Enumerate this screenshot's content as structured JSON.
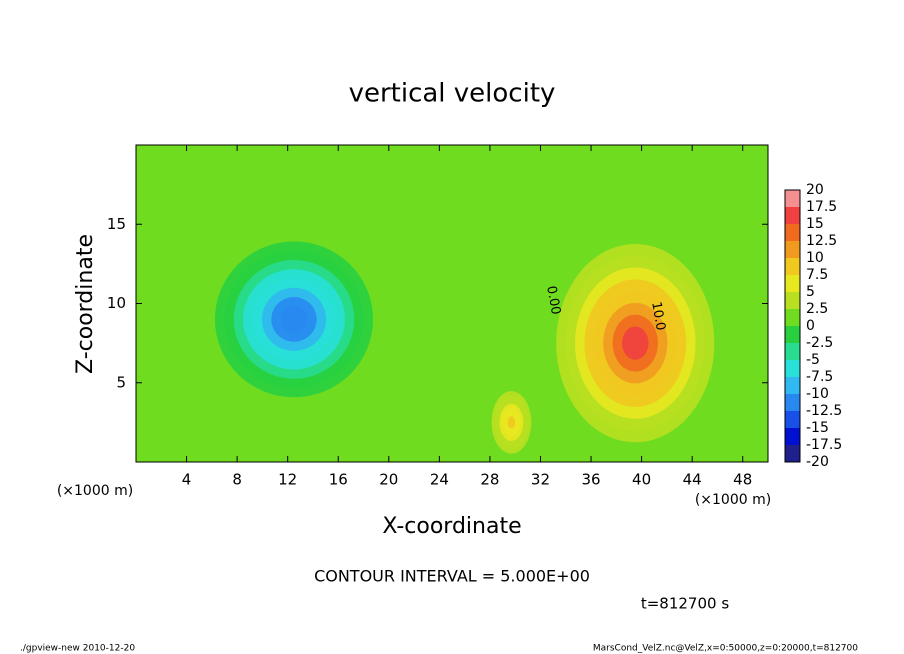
{
  "chart_data": {
    "type": "contour",
    "title": "vertical velocity",
    "x_label": "X-coordinate",
    "y_label": "Z-coordinate",
    "x_unit": "(×1000 m)",
    "y_unit": "(×1000 m)",
    "xlim": [
      0,
      50
    ],
    "ylim": [
      0,
      20
    ],
    "xticks": [
      4,
      8,
      12,
      16,
      20,
      24,
      28,
      32,
      36,
      40,
      44,
      48
    ],
    "yticks": [
      5,
      10,
      15
    ],
    "background_value": 1,
    "features": [
      {
        "x": 12.5,
        "z": 9,
        "rx": 7,
        "rz": 5.5,
        "value": -12.5
      },
      {
        "x": 39.5,
        "z": 7.5,
        "rx": 7,
        "rz": 7,
        "value": 15
      },
      {
        "x": 29.7,
        "z": 2.5,
        "rx": 2,
        "rz": 2.5,
        "value": 7.5
      }
    ],
    "contour_labels": [
      {
        "text": "0.00",
        "x": 33,
        "z": 10.2
      },
      {
        "text": "10.0",
        "x": 41.3,
        "z": 9.2
      }
    ],
    "colorbar": {
      "ticks": [
        20,
        17.5,
        15,
        12.5,
        10,
        7.5,
        5,
        2.5,
        0,
        -2.5,
        -5,
        -7.5,
        -10,
        -12.5,
        -15,
        -17.5,
        -20
      ],
      "colors": [
        "#f49090",
        "#f04040",
        "#f06a20",
        "#f09a20",
        "#f0c820",
        "#e8e820",
        "#b8e020",
        "#70dc20",
        "#28d040",
        "#28dc90",
        "#28e0d8",
        "#30b8f0",
        "#2888f0",
        "#1850e8",
        "#0010d0",
        "#20208c"
      ]
    },
    "interval_note": "CONTOUR INTERVAL = 5.000E+00",
    "time_note": "t=812700 s",
    "footer_left": "./gpview-new  2010-12-20",
    "footer_right": "MarsCond_VelZ.nc@VelZ,x=0:50000,z=0:20000,t=812700"
  }
}
